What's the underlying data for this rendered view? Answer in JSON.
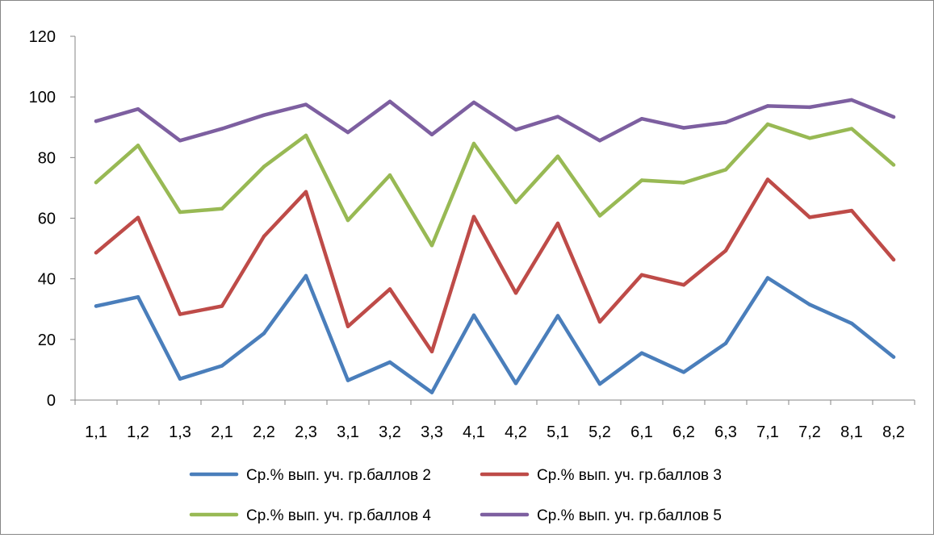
{
  "chart_data": {
    "type": "line",
    "title": "",
    "xlabel": "",
    "ylabel": "",
    "categories": [
      "1,1",
      "1,2",
      "1,3",
      "2,1",
      "2,2",
      "2,3",
      "3,1",
      "3,2",
      "3,3",
      "4,1",
      "4,2",
      "5,1",
      "5,2",
      "6,1",
      "6,2",
      "6,3",
      "7,1",
      "7,2",
      "8,1",
      "8,2"
    ],
    "ylim": [
      0,
      120
    ],
    "yticks": [
      0,
      20,
      40,
      60,
      80,
      100,
      120
    ],
    "grid": false,
    "legend_position": "bottom",
    "series": [
      {
        "name": "Ср.% вып. уч. гр.баллов 2",
        "color": "#4a7ebb",
        "values": [
          31,
          34,
          7,
          11.3,
          22,
          41,
          6.5,
          12.5,
          2.5,
          28,
          5.5,
          27.8,
          5.3,
          15.5,
          9.2,
          18.7,
          40.3,
          31.5,
          25.3,
          14.2
        ]
      },
      {
        "name": "Ср.% вып. уч. гр.баллов 3",
        "color": "#be4b48",
        "values": [
          48.6,
          60.2,
          28.3,
          31,
          54,
          68.7,
          24.3,
          36.6,
          16,
          60.5,
          35.3,
          58.3,
          25.8,
          41.3,
          38,
          49.3,
          72.8,
          60.3,
          62.5,
          46.3
        ]
      },
      {
        "name": "Ср.% вып. уч. гр.баллов 4",
        "color": "#98b954",
        "values": [
          71.8,
          84,
          62,
          63.1,
          77,
          87.3,
          59.3,
          74.2,
          51,
          84.6,
          65.2,
          80.4,
          60.8,
          72.5,
          71.7,
          76,
          91,
          86.4,
          89.5,
          77.6
        ]
      },
      {
        "name": "Ср.% вып. уч. гр.баллов 5",
        "color": "#7d5fa0",
        "values": [
          92,
          96,
          85.6,
          89.5,
          94,
          97.5,
          88.3,
          98.5,
          87.6,
          98.2,
          89.2,
          93.5,
          85.6,
          92.8,
          89.8,
          91.6,
          97,
          96.6,
          99,
          93.4
        ]
      }
    ]
  }
}
